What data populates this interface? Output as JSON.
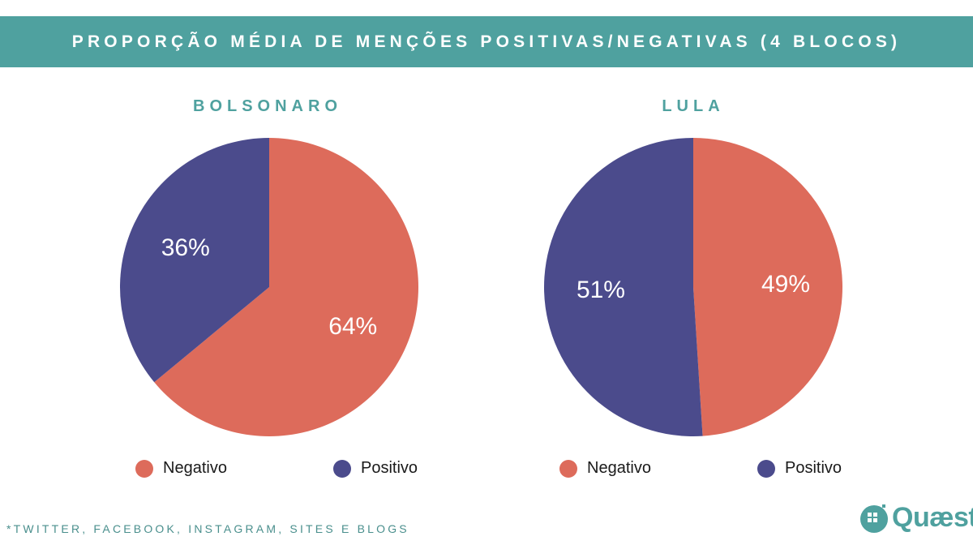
{
  "header": {
    "title": "PROPORÇÃO MÉDIA DE MENÇÕES POSITIVAS/NEGATIVAS (4 BLOCOS)"
  },
  "colors": {
    "teal": "#4fa19f",
    "negativo": "#dd6b5b",
    "positivo": "#4b4b8c",
    "slice_label": "#ffffff"
  },
  "chart_data": [
    {
      "type": "pie",
      "title": "BOLSONARO",
      "categories": [
        "Negativo",
        "Positivo"
      ],
      "values": [
        64,
        36
      ],
      "value_labels": [
        "64%",
        "36%"
      ],
      "start": "12 o'clock, clockwise",
      "legend": [
        "Negativo",
        "Positivo"
      ]
    },
    {
      "type": "pie",
      "title": "LULA",
      "categories": [
        "Negativo",
        "Positivo"
      ],
      "values": [
        49,
        51
      ],
      "value_labels": [
        "49%",
        "51%"
      ],
      "start": "12 o'clock, clockwise",
      "legend": [
        "Negativo",
        "Positivo"
      ]
    }
  ],
  "footnote": "*TWITTER, FACEBOOK, INSTAGRAM, SITES E BLOGS",
  "logo": {
    "text": "Quæst",
    "icon": "quaest-logo-icon"
  }
}
